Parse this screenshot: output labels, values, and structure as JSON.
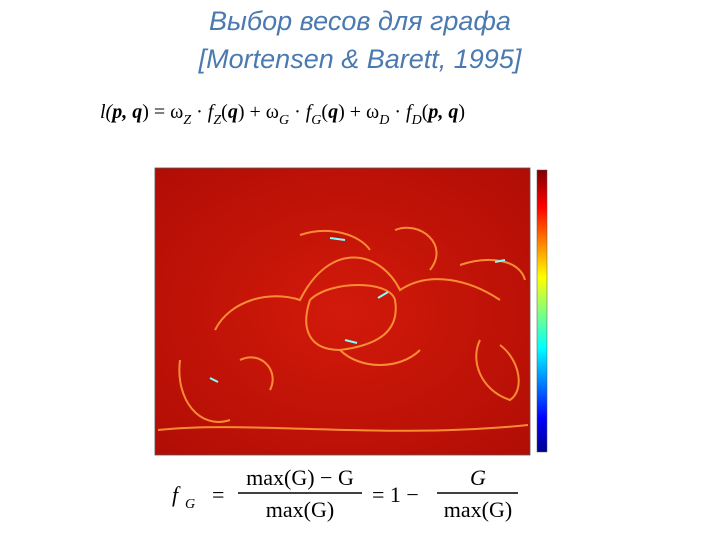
{
  "title": {
    "line1": "Выбор весов для графа",
    "line2": "[Mortensen & Barett, 1995]"
  },
  "formula_top": {
    "parts": [
      "l(",
      "p, q",
      ")  =  ω",
      "Z",
      " · ",
      "f",
      "Z",
      "(",
      "q",
      ")  +  ω",
      "G",
      " · ",
      "f",
      "G",
      "(",
      "q",
      ")  +  ω",
      "D",
      " · ",
      "f",
      "D",
      "(",
      "p, q",
      ")"
    ]
  },
  "formula_bottom": {
    "lhs": "f",
    "lhs_sub": "G",
    "eq1": "=",
    "num1": "max(G) − G",
    "den1": "max(G)",
    "eq2": "=  1  −",
    "num2": "G",
    "den2": "max(G)"
  }
}
